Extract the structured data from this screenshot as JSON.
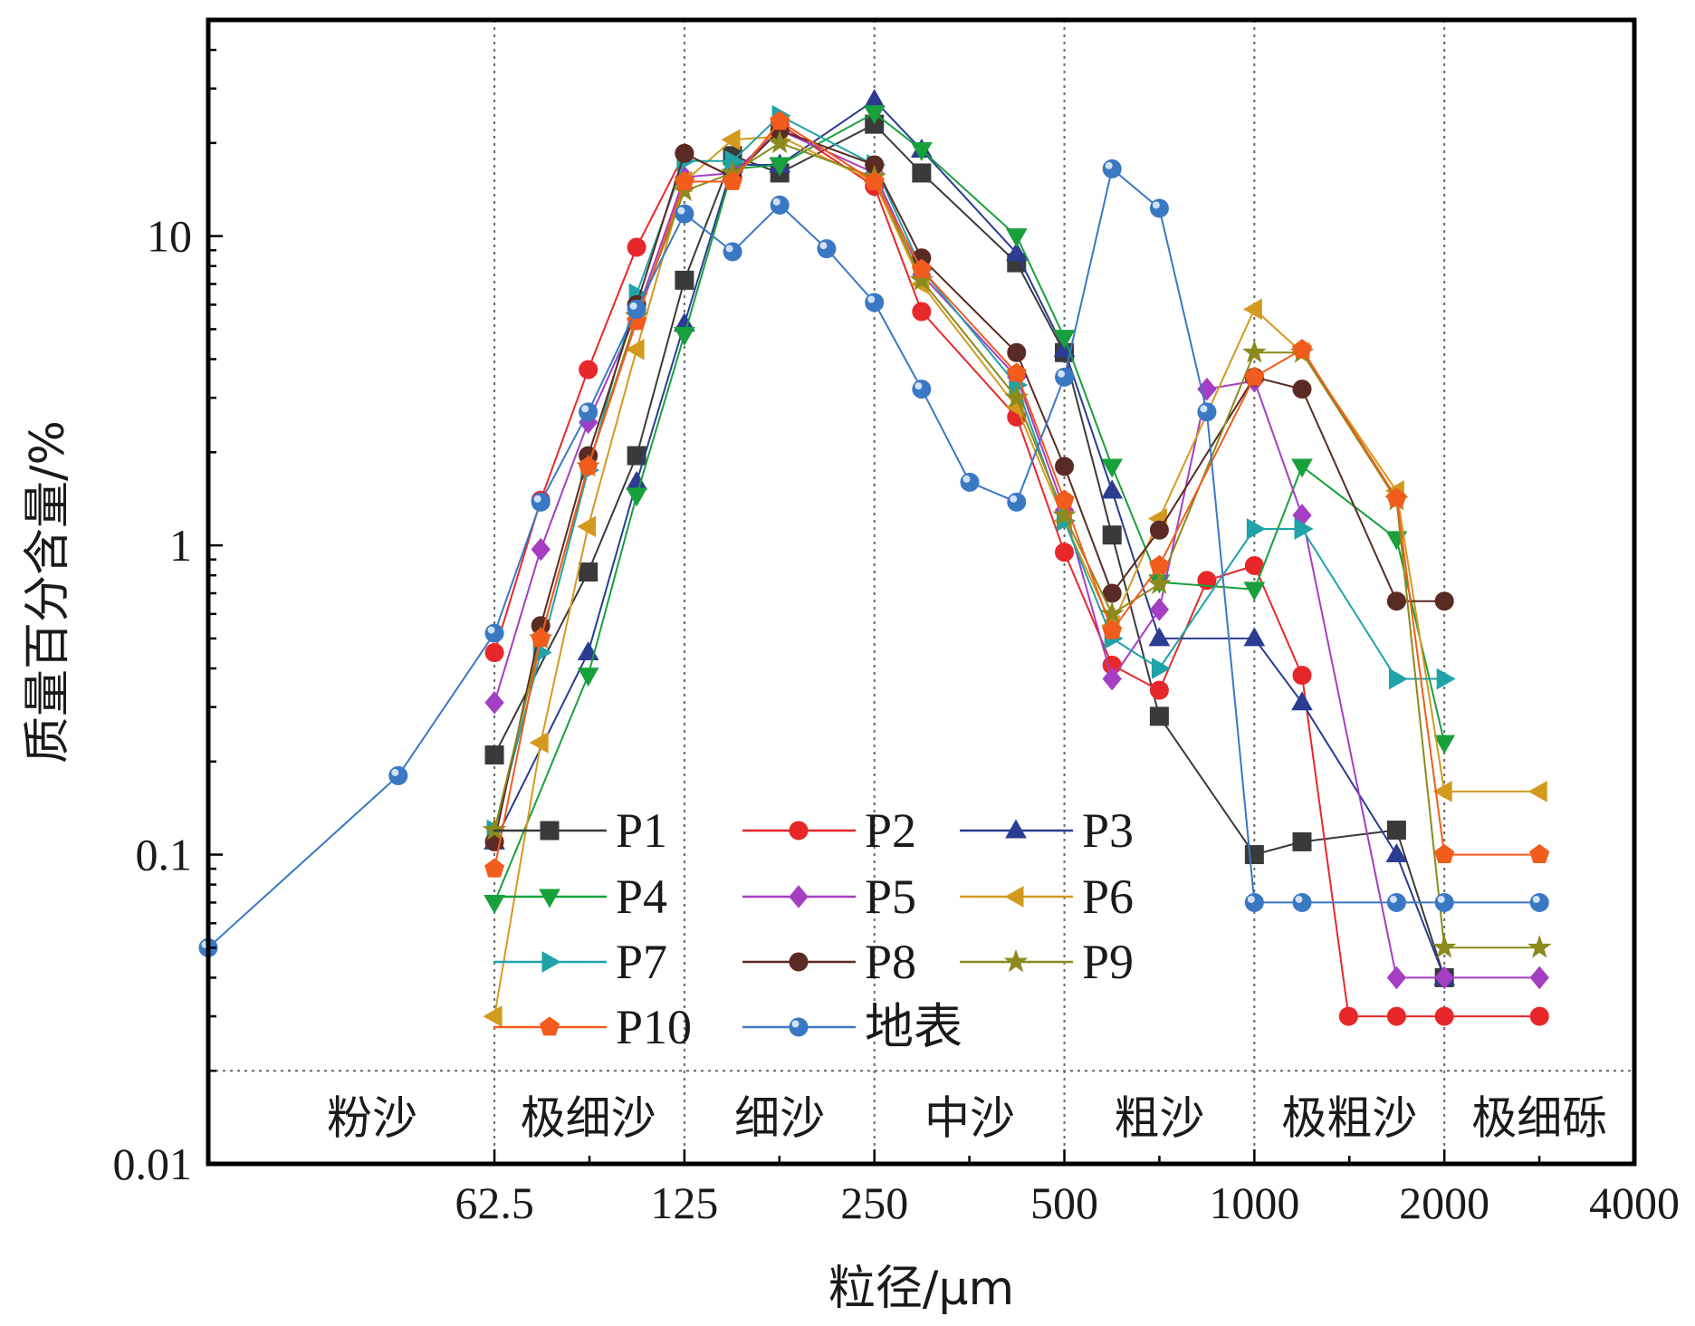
{
  "chart_data": {
    "type": "line",
    "xlabel": "粒径/μm",
    "ylabel": "质量百分含量/%",
    "x_scale": "log2",
    "y_scale": "log10",
    "xlim": [
      22,
      4000
    ],
    "ylim": [
      0.01,
      50
    ],
    "x_ticks": [
      {
        "value": 62.5,
        "label": "62.5"
      },
      {
        "value": 125,
        "label": "125"
      },
      {
        "value": 250,
        "label": "250"
      },
      {
        "value": 500,
        "label": "500"
      },
      {
        "value": 1000,
        "label": "1000"
      },
      {
        "value": 2000,
        "label": "2000"
      },
      {
        "value": 4000,
        "label": "4000"
      }
    ],
    "y_ticks": [
      {
        "value": 0.01,
        "label": "0.01"
      },
      {
        "value": 0.1,
        "label": "0.1"
      },
      {
        "value": 1,
        "label": "1"
      },
      {
        "value": 10,
        "label": "10"
      }
    ],
    "zone_boundaries": [
      62.5,
      125,
      250,
      500,
      1000,
      2000
    ],
    "zone_divider_y": 0.02,
    "zones": [
      {
        "label": "粉沙",
        "x": 40
      },
      {
        "label": "极细沙",
        "x": 88
      },
      {
        "label": "细沙",
        "x": 177
      },
      {
        "label": "中沙",
        "x": 354
      },
      {
        "label": "粗沙",
        "x": 707
      },
      {
        "label": "极粗沙",
        "x": 1414
      },
      {
        "label": "极细砾",
        "x": 2830
      }
    ],
    "legend_position": "bottom-left (inside plot)",
    "series": [
      {
        "name": "P1",
        "color": "#3a3a3a",
        "marker": "square",
        "x": [
          62.5,
          88,
          105,
          125,
          149,
          177,
          250,
          297,
          420,
          500,
          595,
          707,
          1000,
          1190,
          1680,
          2000
        ],
        "y": [
          0.21,
          0.82,
          1.95,
          7.2,
          18.2,
          16.0,
          23.0,
          16.0,
          8.2,
          4.2,
          1.08,
          0.28,
          0.1,
          0.11,
          0.12,
          0.04
        ]
      },
      {
        "name": "P2",
        "color": "#e8272a",
        "marker": "circle",
        "x": [
          62.5,
          74,
          88,
          105,
          125,
          149,
          177,
          250,
          297,
          420,
          500,
          595,
          707,
          841,
          1000,
          1190,
          1410,
          1680,
          2000,
          2830
        ],
        "y": [
          0.45,
          1.4,
          3.7,
          9.2,
          18.5,
          15.5,
          23.0,
          14.5,
          5.7,
          2.6,
          0.95,
          0.41,
          0.34,
          0.77,
          0.86,
          0.38,
          0.03,
          0.03,
          0.03,
          0.03
        ]
      },
      {
        "name": "P3",
        "color": "#2b3c91",
        "marker": "triangle-up",
        "x": [
          62.5,
          88,
          105,
          125,
          149,
          177,
          250,
          297,
          420,
          500,
          595,
          707,
          1000,
          1190,
          1680,
          2000
        ],
        "y": [
          0.11,
          0.45,
          1.6,
          5.2,
          17.0,
          17.0,
          27.5,
          19.0,
          8.8,
          4.3,
          1.5,
          0.5,
          0.5,
          0.31,
          0.1,
          0.04
        ]
      },
      {
        "name": "P4",
        "color": "#18a03c",
        "marker": "triangle-down",
        "x": [
          62.5,
          88,
          105,
          125,
          149,
          177,
          250,
          297,
          420,
          500,
          595,
          707,
          1000,
          1190,
          1680,
          2000
        ],
        "y": [
          0.07,
          0.38,
          1.45,
          4.8,
          16.5,
          17.0,
          25.0,
          19.0,
          10.0,
          4.7,
          1.8,
          0.76,
          0.72,
          1.8,
          1.05,
          0.23
        ]
      },
      {
        "name": "P5",
        "color": "#a43ec2",
        "marker": "diamond",
        "x": [
          62.5,
          74,
          88,
          105,
          125,
          149,
          177,
          250,
          297,
          420,
          500,
          595,
          707,
          841,
          1000,
          1190,
          1680,
          2000,
          2830
        ],
        "y": [
          0.31,
          0.97,
          2.5,
          5.6,
          15.5,
          16.0,
          22.0,
          16.0,
          7.5,
          3.5,
          1.3,
          0.37,
          0.62,
          3.2,
          3.4,
          1.25,
          0.04,
          0.04,
          0.04
        ]
      },
      {
        "name": "P6",
        "color": "#d39a1f",
        "marker": "triangle-left",
        "x": [
          62.5,
          74,
          88,
          105,
          125,
          149,
          177,
          250,
          297,
          420,
          500,
          595,
          707,
          1000,
          1190,
          1680,
          2000,
          2830
        ],
        "y": [
          0.03,
          0.23,
          1.15,
          4.3,
          15.0,
          20.5,
          21.0,
          15.0,
          7.0,
          2.8,
          1.2,
          0.55,
          1.22,
          5.8,
          4.2,
          1.5,
          0.16,
          0.16
        ]
      },
      {
        "name": "P7",
        "color": "#1fa3a8",
        "marker": "triangle-right",
        "x": [
          62.5,
          74,
          88,
          105,
          125,
          149,
          177,
          250,
          297,
          420,
          500,
          595,
          707,
          1000,
          1190,
          1680,
          2000
        ],
        "y": [
          0.12,
          0.45,
          1.75,
          6.5,
          17.5,
          17.5,
          24.5,
          17.0,
          7.8,
          3.3,
          1.2,
          0.5,
          0.4,
          1.13,
          1.13,
          0.37,
          0.37
        ]
      },
      {
        "name": "P8",
        "color": "#5a2a24",
        "marker": "circle",
        "x": [
          62.5,
          74,
          88,
          105,
          125,
          149,
          177,
          250,
          297,
          420,
          500,
          595,
          707,
          1000,
          1190,
          1680,
          2000
        ],
        "y": [
          0.11,
          0.55,
          1.95,
          6.0,
          18.5,
          15.5,
          22.0,
          17.0,
          8.5,
          4.2,
          1.8,
          0.7,
          1.12,
          3.5,
          3.2,
          0.66,
          0.66
        ]
      },
      {
        "name": "P9",
        "color": "#8a8a1e",
        "marker": "star",
        "x": [
          62.5,
          74,
          88,
          105,
          125,
          149,
          177,
          250,
          297,
          420,
          500,
          595,
          707,
          1000,
          1190,
          1680,
          2000,
          2830
        ],
        "y": [
          0.12,
          0.5,
          1.8,
          5.5,
          14.0,
          16.0,
          20.0,
          15.5,
          7.2,
          3.0,
          1.25,
          0.6,
          0.75,
          4.2,
          4.2,
          1.4,
          0.05,
          0.05
        ]
      },
      {
        "name": "P10",
        "color": "#f25c1c",
        "marker": "pentagon",
        "x": [
          62.5,
          74,
          88,
          105,
          125,
          149,
          177,
          250,
          297,
          420,
          500,
          595,
          707,
          1000,
          1190,
          1680,
          2000,
          2830
        ],
        "y": [
          0.09,
          0.5,
          1.8,
          5.3,
          15.0,
          15.0,
          23.5,
          15.0,
          7.8,
          3.6,
          1.4,
          0.53,
          0.86,
          3.5,
          4.3,
          1.42,
          0.1,
          0.1
        ]
      },
      {
        "name": "地表",
        "color": "#3a78c4",
        "marker": "sphere",
        "x": [
          22,
          44,
          62.5,
          74,
          88,
          105,
          125,
          149,
          177,
          210,
          250,
          297,
          354,
          420,
          500,
          595,
          707,
          841,
          1000,
          1190,
          1680,
          2000,
          2830
        ],
        "y": [
          0.05,
          0.18,
          0.52,
          1.38,
          2.7,
          5.8,
          11.8,
          8.9,
          12.6,
          9.1,
          6.1,
          3.2,
          1.6,
          1.38,
          3.5,
          16.5,
          12.3,
          2.7,
          0.07,
          0.07,
          0.07,
          0.07,
          0.07
        ]
      }
    ]
  }
}
